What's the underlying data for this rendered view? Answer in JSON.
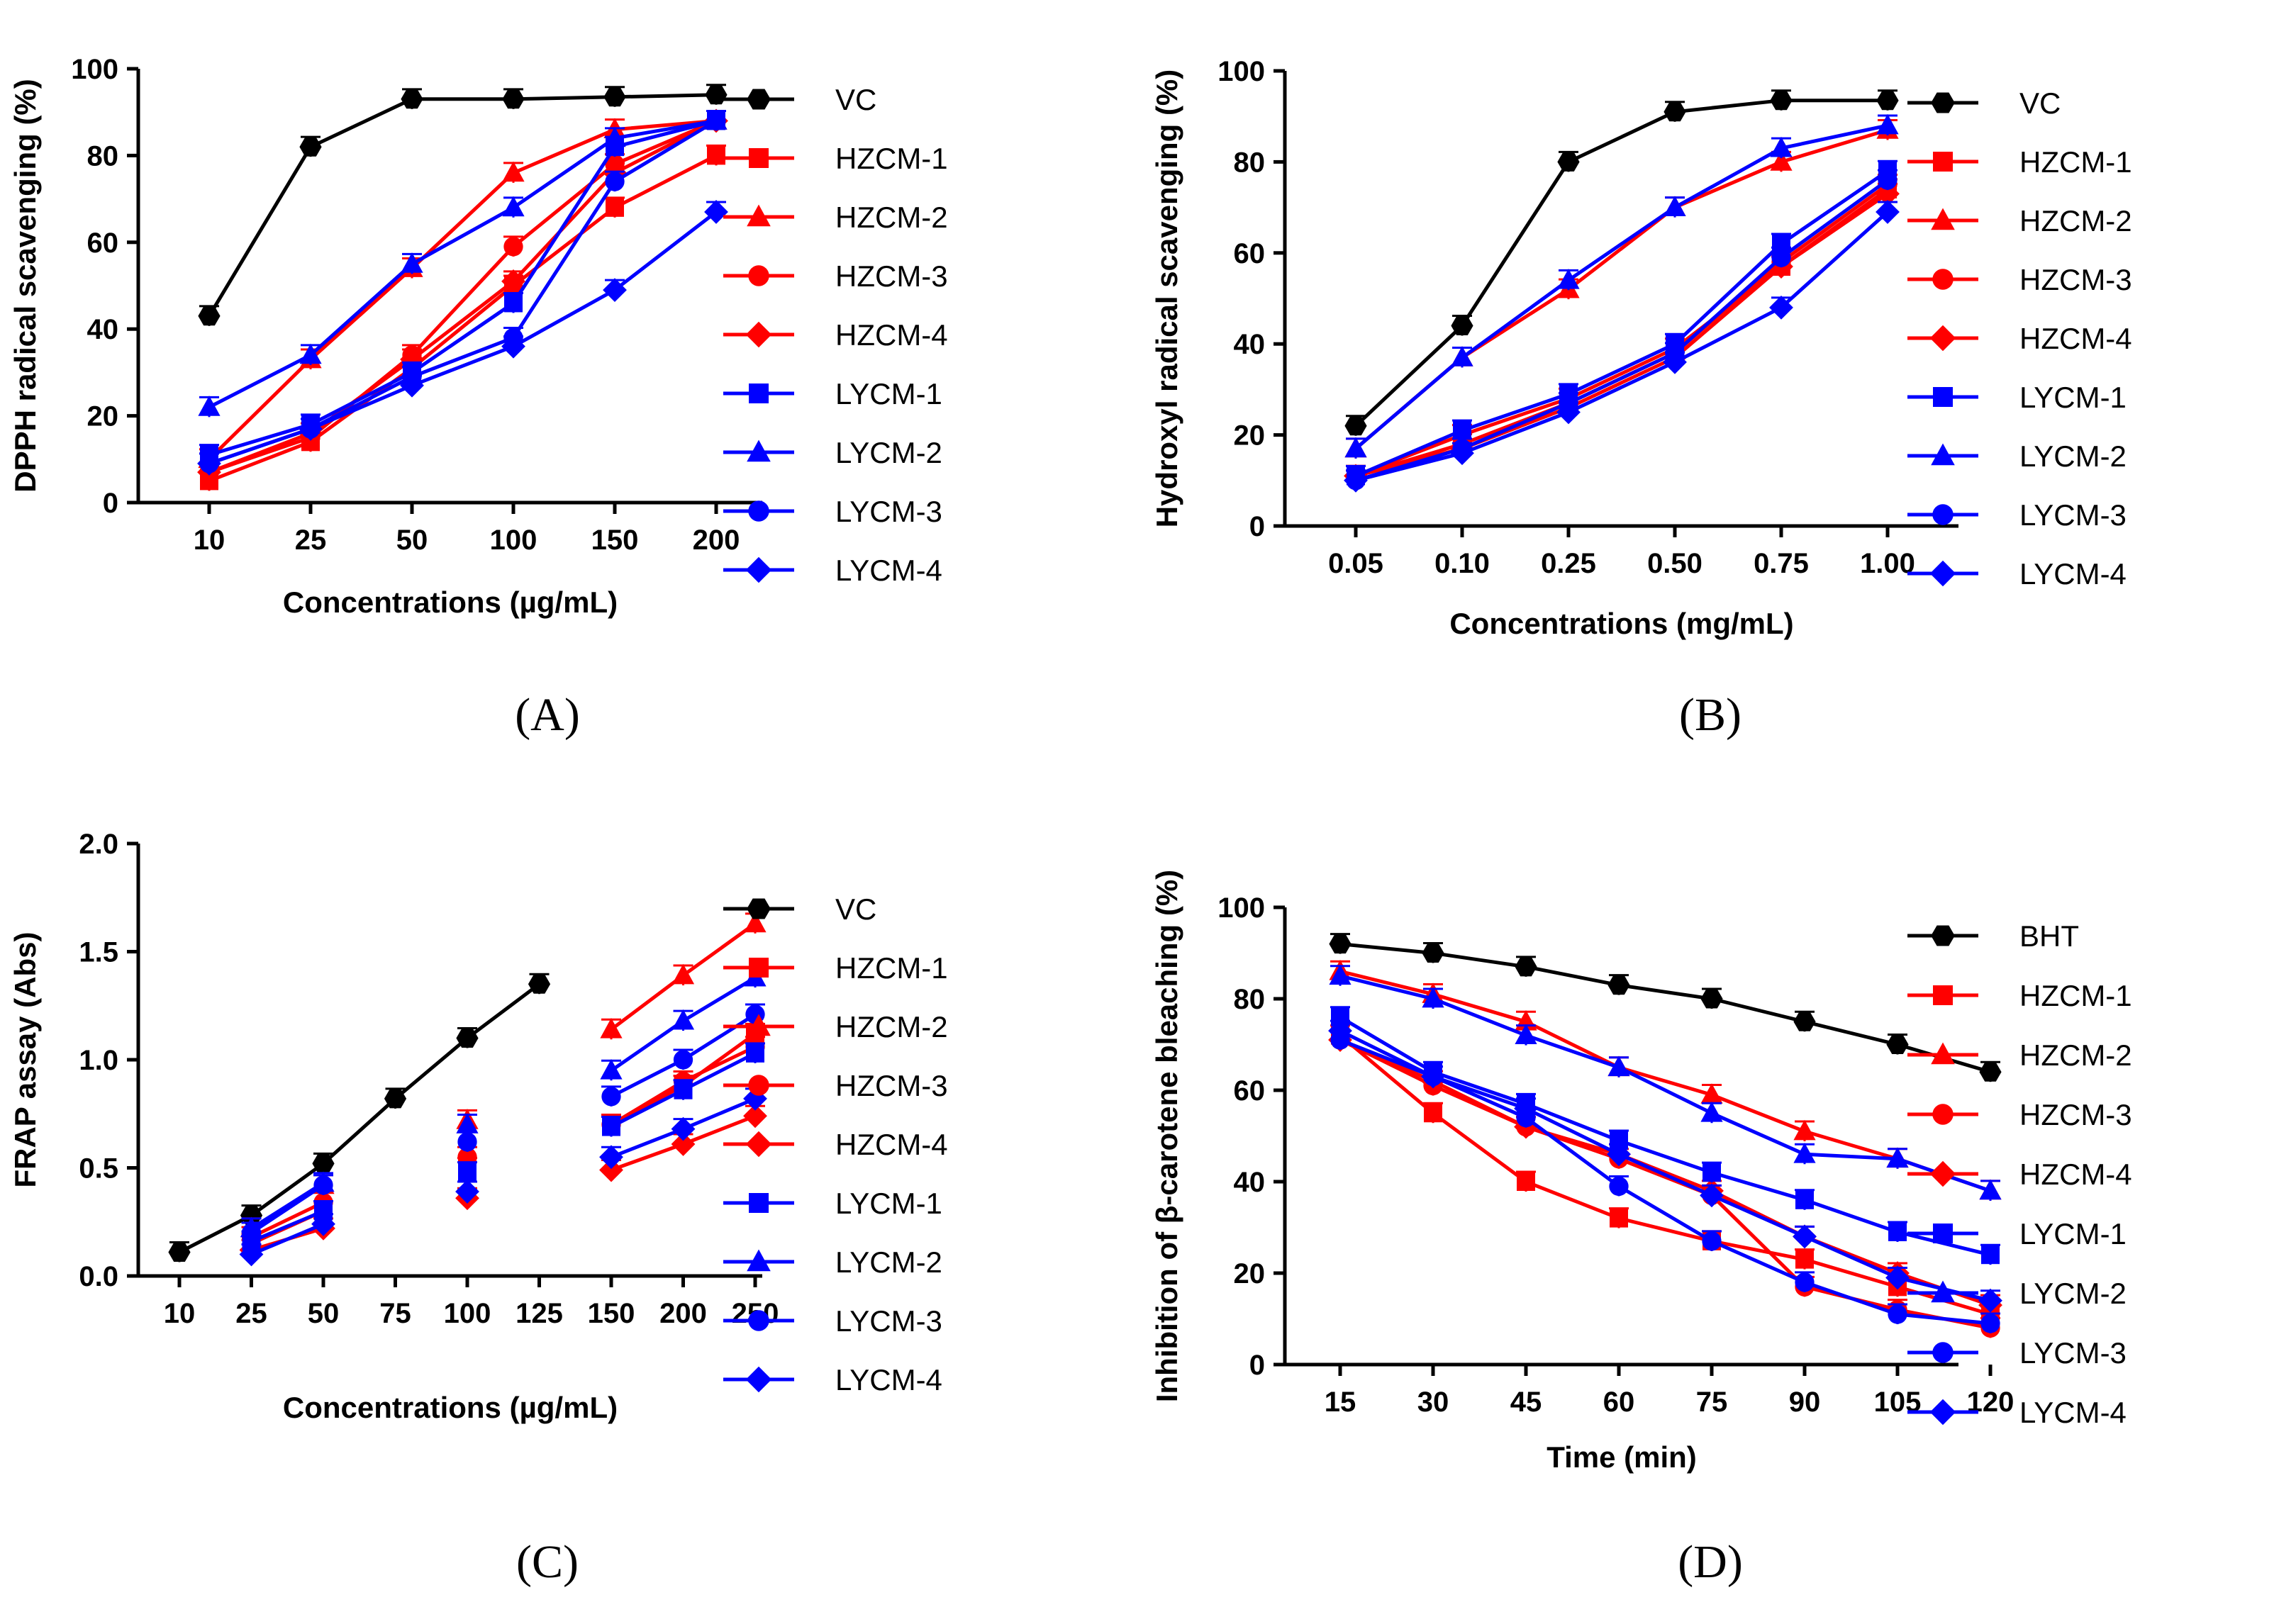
{
  "chart_data": [
    {
      "type": "line",
      "panel_label": "A",
      "panel_label_text": "(A)",
      "xlabel": "Concentrations (µg/mL)",
      "ylabel": "DPPH radical scavenging (%)",
      "categories": [
        "10",
        "25",
        "50",
        "100",
        "150",
        "200"
      ],
      "ylim": [
        0,
        100
      ],
      "yticks": [
        "0",
        "20",
        "40",
        "60",
        "80",
        "100"
      ],
      "grid": false,
      "legend": "right",
      "series": [
        {
          "name": "VC",
          "color": "#000000",
          "marker": "hexagon",
          "values": [
            43,
            82,
            93,
            93,
            93.5,
            94
          ]
        },
        {
          "name": "HZCM-1",
          "color": "#ff0000",
          "marker": "square",
          "values": [
            5,
            14,
            31,
            50,
            68,
            80
          ]
        },
        {
          "name": "HZCM-2",
          "color": "#ff0000",
          "marker": "triangle",
          "values": [
            10,
            33,
            54,
            76,
            86,
            88
          ]
        },
        {
          "name": "HZCM-3",
          "color": "#ff0000",
          "marker": "circle",
          "values": [
            7,
            15,
            34,
            59,
            78,
            88
          ]
        },
        {
          "name": "HZCM-4",
          "color": "#ff0000",
          "marker": "diamond",
          "values": [
            7,
            16,
            33,
            51,
            76,
            88
          ]
        },
        {
          "name": "LYCM-1",
          "color": "#0000ff",
          "marker": "square",
          "values": [
            11,
            18,
            30,
            46,
            82,
            88
          ]
        },
        {
          "name": "LYCM-2",
          "color": "#0000ff",
          "marker": "triangle",
          "values": [
            22,
            34,
            55,
            68,
            84,
            88
          ]
        },
        {
          "name": "LYCM-3",
          "color": "#0000ff",
          "marker": "circle",
          "values": [
            9,
            17,
            29,
            38,
            74,
            88
          ]
        },
        {
          "name": "LYCM-4",
          "color": "#0000ff",
          "marker": "diamond",
          "values": [
            9,
            17,
            27,
            36,
            49,
            67
          ]
        }
      ]
    },
    {
      "type": "line",
      "panel_label": "B",
      "panel_label_text": "(B)",
      "xlabel": "Concentrations (mg/mL)",
      "ylabel": "Hydroxyl radical scavenging (%)",
      "categories": [
        "0.05",
        "0.10",
        "0.25",
        "0.50",
        "0.75",
        "1.00"
      ],
      "ylim": [
        0,
        100
      ],
      "yticks": [
        "0",
        "20",
        "40",
        "60",
        "80",
        "100"
      ],
      "grid": false,
      "legend": "right",
      "series": [
        {
          "name": "VC",
          "color": "#000000",
          "marker": "hexagon",
          "values": [
            22,
            44,
            80,
            91,
            93.5,
            93.5
          ]
        },
        {
          "name": "HZCM-1",
          "color": "#ff0000",
          "marker": "square",
          "values": [
            11,
            20,
            28,
            39,
            57,
            74
          ]
        },
        {
          "name": "HZCM-2",
          "color": "#ff0000",
          "marker": "triangle",
          "values": [
            17,
            37,
            52,
            70,
            80,
            87
          ]
        },
        {
          "name": "HZCM-3",
          "color": "#ff0000",
          "marker": "circle",
          "values": [
            11,
            18,
            27,
            38,
            58,
            75
          ]
        },
        {
          "name": "HZCM-4",
          "color": "#ff0000",
          "marker": "diamond",
          "values": [
            11,
            17,
            26,
            37,
            57,
            73
          ]
        },
        {
          "name": "LYCM-1",
          "color": "#0000ff",
          "marker": "square",
          "values": [
            11,
            21,
            29,
            40,
            62,
            78
          ]
        },
        {
          "name": "LYCM-2",
          "color": "#0000ff",
          "marker": "triangle",
          "values": [
            17,
            37,
            54,
            70,
            83,
            88
          ]
        },
        {
          "name": "LYCM-3",
          "color": "#0000ff",
          "marker": "circle",
          "values": [
            10,
            17,
            27,
            38,
            59,
            76
          ]
        },
        {
          "name": "LYCM-4",
          "color": "#0000ff",
          "marker": "diamond",
          "values": [
            10,
            16,
            25,
            36,
            48,
            69
          ]
        }
      ]
    },
    {
      "type": "line",
      "panel_label": "C",
      "panel_label_text": "(C)",
      "xlabel": "Concentrations (µg/mL)",
      "ylabel": "FRAP assay (Abs)",
      "categories": [
        "10",
        "25",
        "50",
        "75",
        "100",
        "125",
        "150",
        "200",
        "250"
      ],
      "ylim": [
        0,
        2.0
      ],
      "yticks": [
        "0.0",
        "0.5",
        "1.0",
        "1.5",
        "2.0"
      ],
      "grid": false,
      "legend": "right",
      "series": [
        {
          "name": "VC",
          "color": "#000000",
          "marker": "hexagon",
          "values": [
            0.11,
            0.28,
            0.52,
            0.82,
            1.1,
            1.35,
            null,
            null,
            null
          ]
        },
        {
          "name": "HZCM-1",
          "color": "#ff0000",
          "marker": "square",
          "values": [
            null,
            0.15,
            0.3,
            null,
            0.5,
            null,
            0.7,
            0.88,
            1.12
          ]
        },
        {
          "name": "HZCM-2",
          "color": "#ff0000",
          "marker": "triangle",
          "values": [
            null,
            0.22,
            0.42,
            null,
            0.72,
            null,
            1.14,
            1.39,
            1.63
          ]
        },
        {
          "name": "HZCM-3",
          "color": "#ff0000",
          "marker": "circle",
          "values": [
            null,
            0.18,
            0.34,
            null,
            0.55,
            null,
            0.7,
            0.9,
            1.06
          ]
        },
        {
          "name": "HZCM-4",
          "color": "#ff0000",
          "marker": "diamond",
          "values": [
            null,
            0.12,
            0.22,
            null,
            0.36,
            null,
            0.49,
            0.61,
            0.74
          ]
        },
        {
          "name": "LYCM-1",
          "color": "#0000ff",
          "marker": "square",
          "values": [
            null,
            0.16,
            0.3,
            null,
            0.48,
            null,
            0.69,
            0.86,
            1.03
          ]
        },
        {
          "name": "LYCM-2",
          "color": "#0000ff",
          "marker": "triangle",
          "values": [
            null,
            0.22,
            0.43,
            null,
            0.7,
            null,
            0.95,
            1.18,
            1.38
          ]
        },
        {
          "name": "LYCM-3",
          "color": "#0000ff",
          "marker": "circle",
          "values": [
            null,
            0.2,
            0.42,
            null,
            0.62,
            null,
            0.83,
            1.0,
            1.21
          ]
        },
        {
          "name": "LYCM-4",
          "color": "#0000ff",
          "marker": "diamond",
          "values": [
            null,
            0.1,
            0.24,
            null,
            0.39,
            null,
            0.55,
            0.68,
            0.82
          ]
        }
      ]
    },
    {
      "type": "line",
      "panel_label": "D",
      "panel_label_text": "(D)",
      "xlabel": "Time (min)",
      "ylabel": "Inhibition of β-carotene bleaching (%)",
      "categories": [
        "15",
        "30",
        "45",
        "60",
        "75",
        "90",
        "105",
        "120"
      ],
      "ylim": [
        0,
        100
      ],
      "yticks": [
        "0",
        "20",
        "40",
        "60",
        "80",
        "100"
      ],
      "grid": false,
      "legend": "right",
      "series": [
        {
          "name": "BHT",
          "color": "#000000",
          "marker": "hexagon",
          "values": [
            92,
            90,
            87,
            83,
            80,
            75,
            70,
            64
          ]
        },
        {
          "name": "HZCM-1",
          "color": "#ff0000",
          "marker": "square",
          "values": [
            72,
            55,
            40,
            32,
            27,
            23,
            17,
            11
          ]
        },
        {
          "name": "HZCM-2",
          "color": "#ff0000",
          "marker": "triangle",
          "values": [
            86,
            81,
            75,
            65,
            59,
            51,
            45,
            38
          ]
        },
        {
          "name": "HZCM-3",
          "color": "#ff0000",
          "marker": "circle",
          "values": [
            71,
            61,
            52,
            45,
            37,
            17,
            12,
            8
          ]
        },
        {
          "name": "HZCM-4",
          "color": "#ff0000",
          "marker": "diamond",
          "values": [
            71,
            62,
            52,
            46,
            38,
            28,
            20,
            13
          ]
        },
        {
          "name": "LYCM-1",
          "color": "#0000ff",
          "marker": "square",
          "values": [
            76,
            64,
            57,
            49,
            42,
            36,
            29,
            24
          ]
        },
        {
          "name": "LYCM-2",
          "color": "#0000ff",
          "marker": "triangle",
          "values": [
            85,
            80,
            72,
            65,
            55,
            46,
            45,
            38
          ]
        },
        {
          "name": "LYCM-3",
          "color": "#0000ff",
          "marker": "circle",
          "values": [
            71,
            63,
            54,
            39,
            27,
            18,
            11,
            9
          ]
        },
        {
          "name": "LYCM-4",
          "color": "#0000ff",
          "marker": "diamond",
          "values": [
            73,
            63,
            56,
            46,
            37,
            28,
            19,
            14
          ]
        }
      ]
    }
  ]
}
